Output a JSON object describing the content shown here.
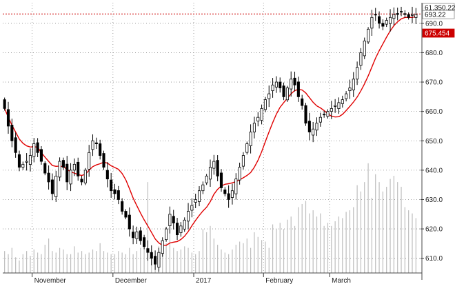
{
  "chart_data": {
    "type": "candlestick",
    "y_axis": {
      "min": 605,
      "max": 697,
      "ticks": [
        610,
        620,
        630,
        640,
        650,
        660,
        670,
        680,
        690
      ],
      "tick_labels": [
        "610.0",
        "620.0",
        "630.0",
        "640.0",
        "650.0",
        "660.0",
        "670.0",
        "680.0",
        "690.0"
      ],
      "side": "right"
    },
    "x_axis": {
      "month_labels": [
        {
          "label": "November",
          "bar": 8
        },
        {
          "label": "December",
          "bar": 30
        },
        {
          "label": "2017",
          "bar": 52
        },
        {
          "label": "February",
          "bar": 71
        },
        {
          "label": "March",
          "bar": 89
        }
      ],
      "bars": 113,
      "grid": "dotted"
    },
    "tags": {
      "volume": "61,350.22",
      "last_price": "693.22",
      "moving_average": "675.454"
    },
    "reference_line": 693.2,
    "colors": {
      "up_candle": "#ffffff",
      "down_candle": "#000000",
      "wick": "#000000",
      "moving_average": "#e00000",
      "volume": "#bdbdbd",
      "grid": "#888888",
      "ma_tag": "#cc0000",
      "ref_line": "#cc0000"
    },
    "closes": [
      661,
      655,
      650,
      646,
      641,
      642,
      643,
      645,
      649,
      646,
      643,
      639,
      636,
      632,
      638,
      643,
      641,
      636,
      640,
      642,
      638,
      636,
      640,
      646,
      650,
      649,
      645,
      641,
      637,
      633,
      632,
      630,
      626,
      624,
      620,
      617,
      619,
      616,
      614,
      612,
      610,
      608,
      612,
      616,
      620,
      625,
      622,
      618,
      621,
      623,
      626,
      628,
      630,
      633,
      635,
      638,
      641,
      643,
      638,
      634,
      632,
      630,
      633,
      637,
      641,
      645,
      649,
      653,
      656,
      658,
      661,
      664,
      666,
      669,
      670,
      668,
      665,
      668,
      671,
      669,
      665,
      662,
      656,
      653,
      654,
      656,
      658,
      659,
      660,
      661,
      662,
      663,
      664,
      666,
      668,
      671,
      675,
      680,
      684,
      688,
      692,
      693,
      690,
      689,
      691,
      692,
      693,
      693,
      694,
      693,
      692,
      693,
      693
    ],
    "volume_levels": [
      0.14,
      0.12,
      0.16,
      0.1,
      0.08,
      0.12,
      0.14,
      0.11,
      0.15,
      0.13,
      0.12,
      0.18,
      0.22,
      0.14,
      0.13,
      0.16,
      0.15,
      0.12,
      0.12,
      0.17,
      0.13,
      0.14,
      0.12,
      0.13,
      0.15,
      0.14,
      0.19,
      0.14,
      0.13,
      0.12,
      0.12,
      0.14,
      0.13,
      0.12,
      0.16,
      0.12,
      0.14,
      0.16,
      0.18,
      0.58,
      0.15,
      0.14,
      0.17,
      0.18,
      0.19,
      0.28,
      0.16,
      0.14,
      0.15,
      0.17,
      0.16,
      0.13,
      0.12,
      0.14,
      0.28,
      0.26,
      0.3,
      0.22,
      0.18,
      0.15,
      0.13,
      0.12,
      0.15,
      0.18,
      0.2,
      0.19,
      0.22,
      0.16,
      0.26,
      0.23,
      0.21,
      0.2,
      0.16,
      0.31,
      0.28,
      0.32,
      0.28,
      0.34,
      0.36,
      0.3,
      0.42,
      0.44,
      0.46,
      0.38,
      0.4,
      0.36,
      0.38,
      0.3,
      0.32,
      0.3,
      0.33,
      0.36,
      0.35,
      0.39,
      0.4,
      0.42,
      0.56,
      0.52,
      0.58,
      0.7,
      0.48,
      0.63,
      0.58,
      0.52,
      0.55,
      0.6,
      0.62,
      0.58,
      0.55,
      0.42,
      0.4,
      0.38,
      0.35
    ]
  }
}
